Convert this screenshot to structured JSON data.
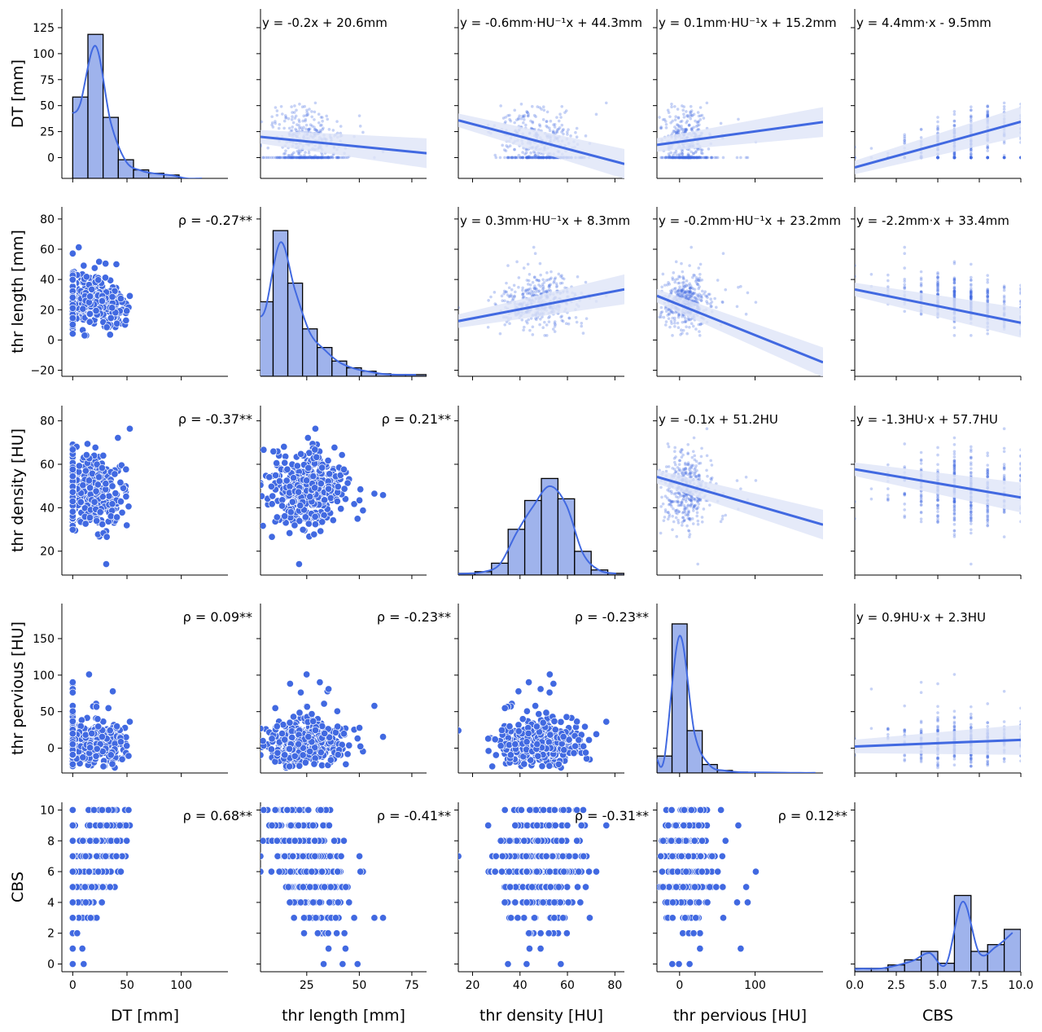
{
  "variables": [
    "DT [mm]",
    "thr length [mm]",
    "thr density [HU]",
    "thr pervious [HU]",
    "CBS"
  ],
  "axis_ticks": [
    [
      "0",
      "50",
      "100"
    ],
    [
      "25",
      "50",
      "75"
    ],
    [
      "20",
      "40",
      "60",
      "80"
    ],
    [
      "0",
      "100"
    ],
    [
      "0.0",
      "2.5",
      "5.0",
      "7.5",
      "10.0"
    ]
  ],
  "row_ticks": [
    [
      "0",
      "25",
      "50",
      "75",
      "100",
      "125"
    ],
    [
      "−20",
      "0",
      "20",
      "40",
      "60",
      "80"
    ],
    [
      "20",
      "40",
      "60",
      "80"
    ],
    [
      "0",
      "50",
      "100",
      "150"
    ],
    [
      "0",
      "2",
      "4",
      "6",
      "8",
      "10"
    ]
  ],
  "colors": {
    "accent": "#4169e1",
    "hist_fill": "#9fb3ec",
    "ci_band": "#dfe5f8",
    "axis": "#000000"
  },
  "chart_data": {
    "type": "scatter",
    "layout": "pairplot",
    "correlations": [
      {
        "row": 1,
        "col": 0,
        "label": "ρ = -0.27**",
        "value": -0.27
      },
      {
        "row": 2,
        "col": 0,
        "label": "ρ = -0.37**",
        "value": -0.37
      },
      {
        "row": 2,
        "col": 1,
        "label": "ρ = 0.21**",
        "value": 0.21
      },
      {
        "row": 3,
        "col": 0,
        "label": "ρ = 0.09**",
        "value": 0.09
      },
      {
        "row": 3,
        "col": 1,
        "label": "ρ = -0.23**",
        "value": -0.23
      },
      {
        "row": 3,
        "col": 2,
        "label": "ρ = -0.23**",
        "value": -0.23
      },
      {
        "row": 4,
        "col": 0,
        "label": "ρ = 0.68**",
        "value": 0.68
      },
      {
        "row": 4,
        "col": 1,
        "label": "ρ = -0.41**",
        "value": -0.41
      },
      {
        "row": 4,
        "col": 2,
        "label": "ρ = -0.31**",
        "value": -0.31
      },
      {
        "row": 4,
        "col": 3,
        "label": "ρ = 0.12**",
        "value": 0.12
      }
    ],
    "regressions": [
      {
        "row": 0,
        "col": 1,
        "label": "y = -0.2x + 20.6mm",
        "slope": -0.2,
        "intercept": 20.6
      },
      {
        "row": 0,
        "col": 2,
        "label": "y = -0.6mm·HU⁻¹x + 44.3mm",
        "slope": -0.6,
        "intercept": 44.3
      },
      {
        "row": 0,
        "col": 3,
        "label": "y = 0.1mm·HU⁻¹x + 15.2mm",
        "slope": 0.1,
        "intercept": 15.2
      },
      {
        "row": 0,
        "col": 4,
        "label": "y = 4.4mm·x - 9.5mm",
        "slope": 4.4,
        "intercept": -9.5
      },
      {
        "row": 1,
        "col": 2,
        "label": "y = 0.3mm·HU⁻¹x + 8.3mm",
        "slope": 0.3,
        "intercept": 8.3
      },
      {
        "row": 1,
        "col": 3,
        "label": "y = -0.2mm·HU⁻¹x + 23.2mm",
        "slope": -0.2,
        "intercept": 23.2
      },
      {
        "row": 1,
        "col": 4,
        "label": "y = -2.2mm·x + 33.4mm",
        "slope": -2.2,
        "intercept": 33.4
      },
      {
        "row": 2,
        "col": 3,
        "label": "y = -0.1x + 51.2HU",
        "slope": -0.1,
        "intercept": 51.2
      },
      {
        "row": 2,
        "col": 4,
        "label": "y = -1.3HU·x + 57.7HU",
        "slope": -1.3,
        "intercept": 57.7
      },
      {
        "row": 3,
        "col": 4,
        "label": "y = 0.9HU·x + 2.3HU",
        "slope": 0.9,
        "intercept": 2.3
      }
    ],
    "histograms": [
      {
        "variable": "DT [mm]",
        "bin_edges": [
          0,
          14,
          28,
          42,
          56,
          70,
          84,
          98,
          112,
          126,
          140
        ],
        "heights": [
          0.48,
          0.85,
          0.36,
          0.11,
          0.05,
          0.03,
          0.02,
          0,
          0,
          0,
          0
        ]
      },
      {
        "variable": "thr length [mm]",
        "bin_edges": [
          2,
          9,
          16,
          23,
          30,
          37,
          44,
          51,
          58,
          65,
          72,
          82
        ],
        "heights": [
          0.44,
          0.86,
          0.55,
          0.28,
          0.17,
          0.09,
          0.05,
          0.03,
          0.015,
          0.01,
          0.01
        ]
      },
      {
        "variable": "thr density [HU]",
        "bin_edges": [
          14,
          21,
          28,
          35,
          42,
          49,
          56,
          63,
          70,
          77,
          84
        ],
        "heights": [
          0.01,
          0.02,
          0.07,
          0.27,
          0.44,
          0.57,
          0.45,
          0.14,
          0.03,
          0.01
        ]
      },
      {
        "variable": "thr pervious [HU]",
        "bin_edges": [
          -30,
          -10,
          10,
          30,
          50,
          70,
          90,
          110,
          130,
          150,
          170,
          190
        ],
        "heights": [
          0.1,
          0.88,
          0.25,
          0.05,
          0.015,
          0.005,
          0.004,
          0.003,
          0.002,
          0.001,
          0.001
        ]
      },
      {
        "variable": "CBS",
        "bin_edges": [
          0,
          1,
          2,
          3,
          4,
          5,
          6,
          7,
          8,
          9,
          10
        ],
        "heights": [
          0.02,
          0.02,
          0.04,
          0.07,
          0.12,
          0.05,
          0.45,
          0.12,
          0.16,
          0.25
        ]
      }
    ]
  }
}
